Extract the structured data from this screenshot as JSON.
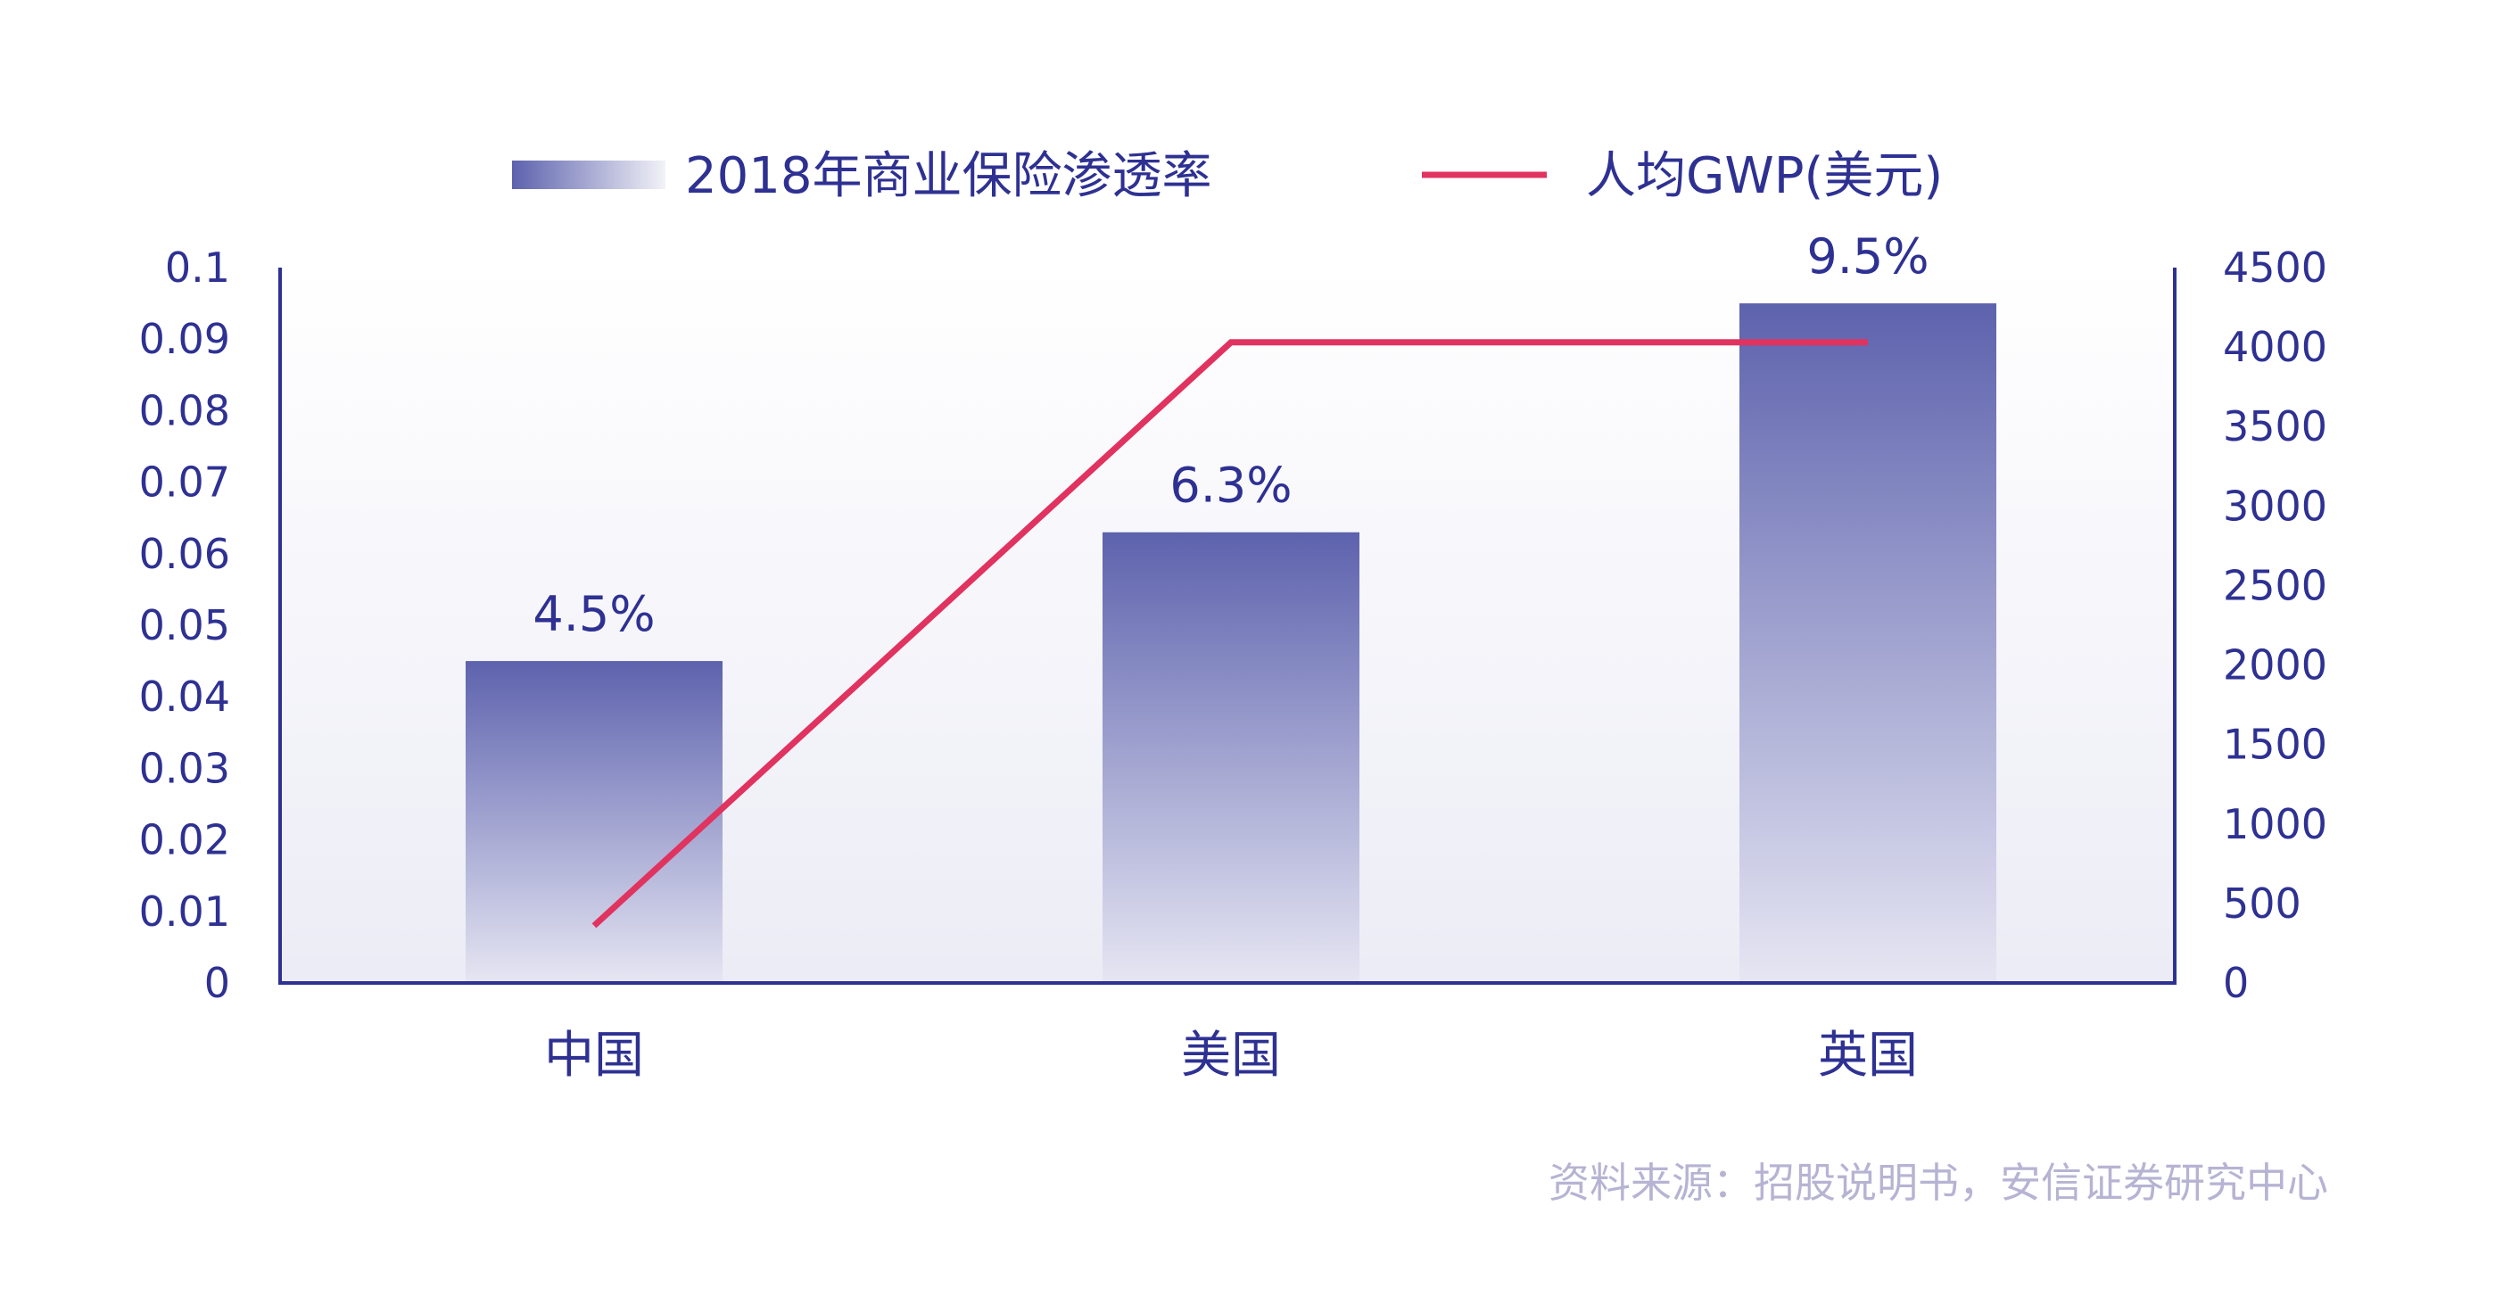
{
  "chart_data": {
    "type": "bar",
    "categories": [
      "中国",
      "美国",
      "英国"
    ],
    "series": [
      {
        "name": "2018年商业保险渗透率",
        "type": "bar",
        "axis": "left",
        "values": [
          0.045,
          0.063,
          0.095
        ],
        "labels": [
          "4.5%",
          "6.3%",
          "9.5%"
        ]
      },
      {
        "name": "人均GWP(美元)",
        "type": "line",
        "axis": "right",
        "values": [
          360,
          4030,
          4030
        ]
      }
    ],
    "ylim_left": [
      0,
      0.1
    ],
    "yticks_left": [
      "0",
      "0.01",
      "0.02",
      "0.03",
      "0.04",
      "0.05",
      "0.06",
      "0.07",
      "0.08",
      "0.09",
      "0.1"
    ],
    "ylim_right": [
      0,
      4500
    ],
    "yticks_right": [
      "0",
      "500",
      "1000",
      "1500",
      "2000",
      "2500",
      "3000",
      "3500",
      "4000",
      "4500"
    ],
    "legend_position": "top-center",
    "grid": false,
    "source": "资料来源：招股说明书，安信证券研究中心",
    "colors": {
      "axis": "#2e3192",
      "bar_top": "#5d62ad",
      "bar_bottom": "#e6e6f3",
      "line": "#e0335f",
      "source": "#b6b3d3"
    }
  }
}
